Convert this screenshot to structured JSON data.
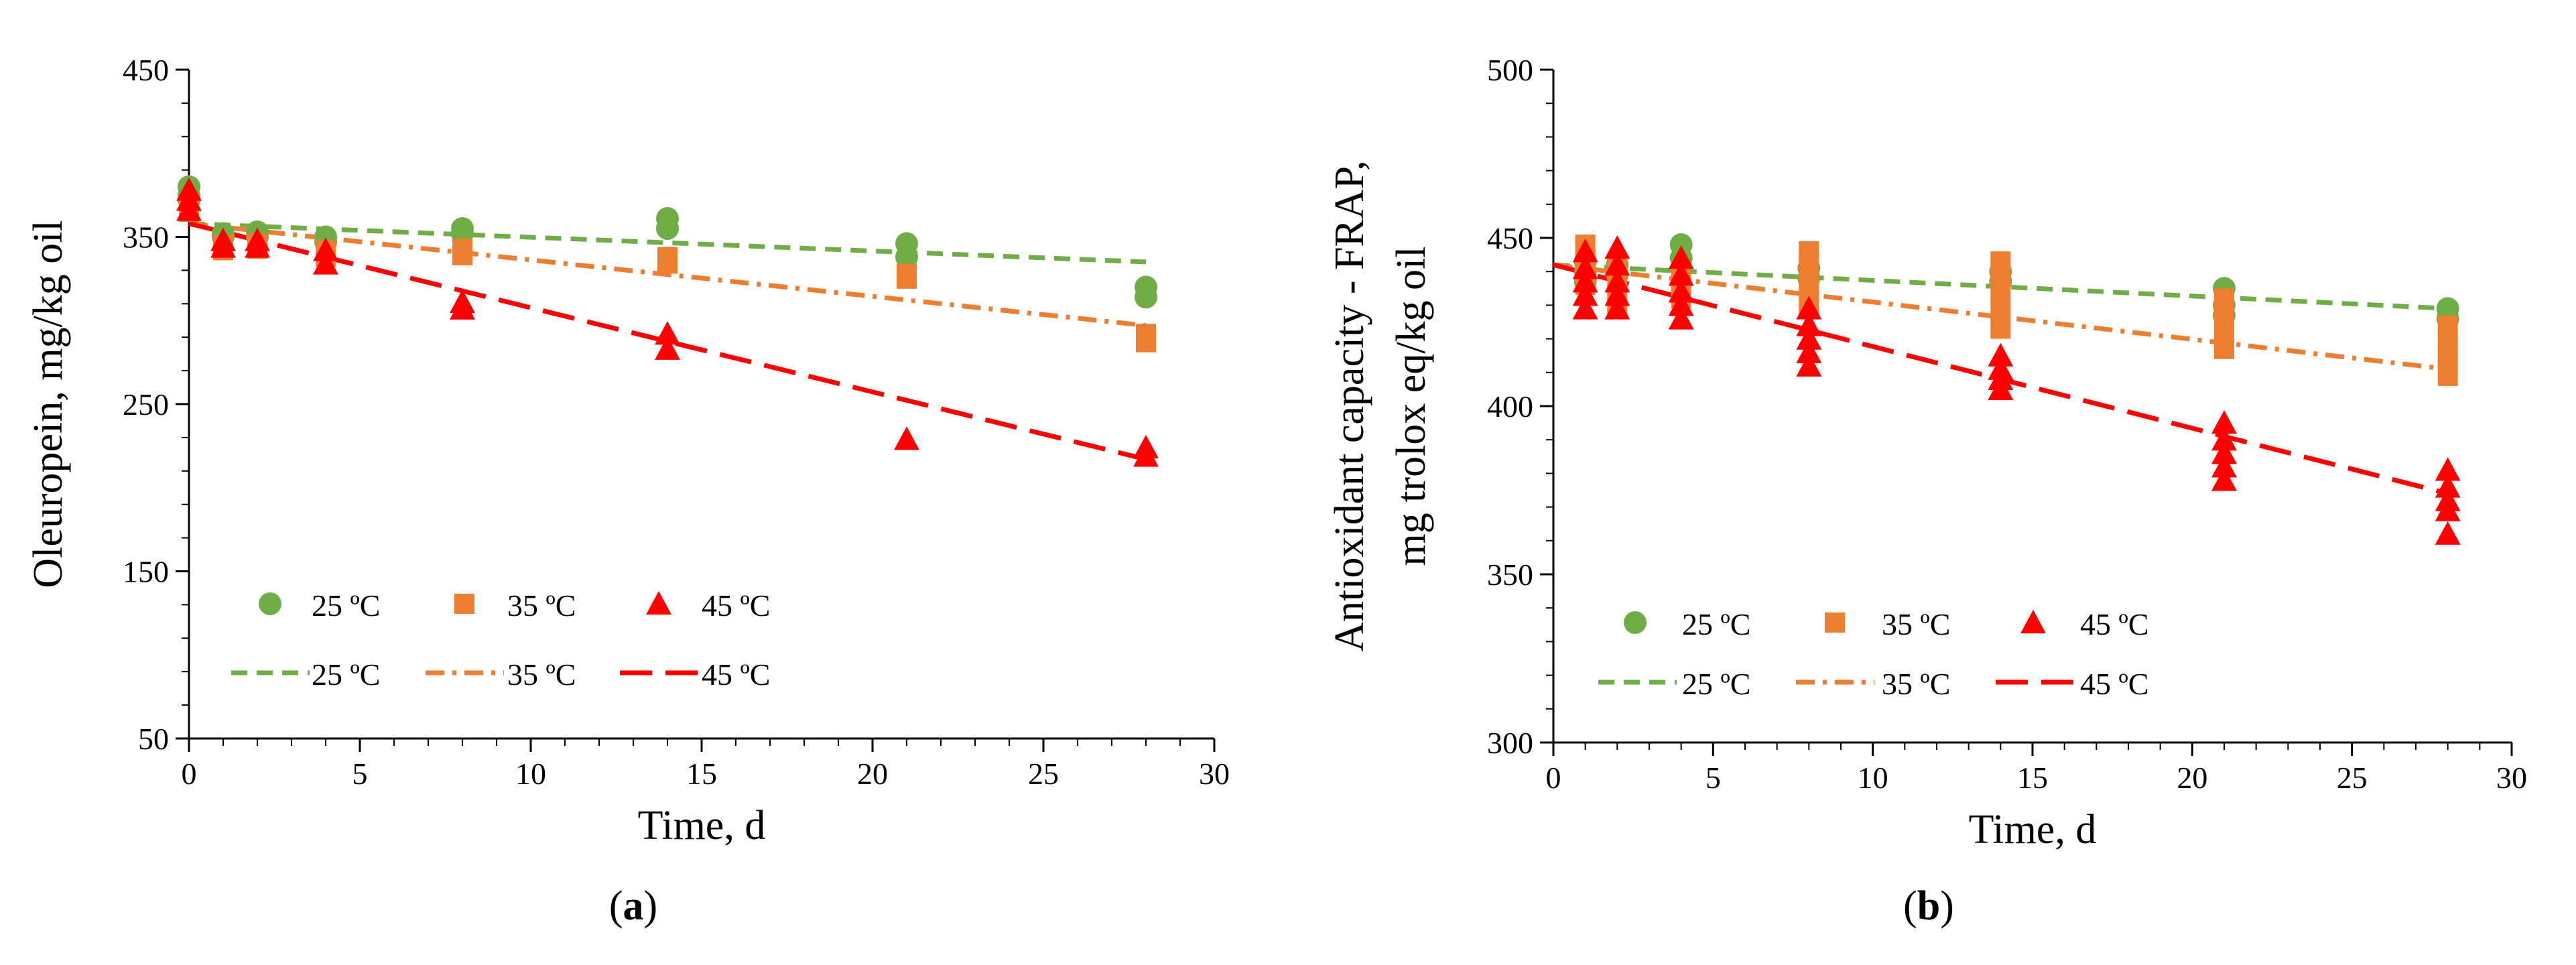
{
  "chart_data": [
    {
      "id": "a",
      "type": "scatter",
      "caption_letter": "a",
      "xlabel": "Time, d",
      "ylabel_lines": [
        "Oleuropein, mg/kg oil"
      ],
      "xlim": [
        0,
        30
      ],
      "ylim": [
        50,
        450
      ],
      "xticks": [
        0,
        5,
        10,
        15,
        20,
        25,
        30
      ],
      "yticks": [
        50,
        150,
        250,
        350,
        450
      ],
      "series": [
        {
          "name": "25 ºC",
          "marker": "circle",
          "color": "#70AD47",
          "points": [
            [
              0,
              380
            ],
            [
              0,
              375
            ],
            [
              0,
              372
            ],
            [
              1,
              352
            ],
            [
              1,
              350
            ],
            [
              2,
              353
            ],
            [
              2,
              350
            ],
            [
              4,
              350
            ],
            [
              4,
              347
            ],
            [
              8,
              355
            ],
            [
              8,
              352
            ],
            [
              14,
              361
            ],
            [
              14,
              355
            ],
            [
              21,
              346
            ],
            [
              21,
              338
            ],
            [
              28,
              320
            ],
            [
              28,
              314
            ]
          ]
        },
        {
          "name": "35 ºC",
          "marker": "square",
          "color": "#ED7D31",
          "points": [
            [
              0,
              370
            ],
            [
              0,
              365
            ],
            [
              1,
              345
            ],
            [
              1,
              342
            ],
            [
              2,
              346
            ],
            [
              2,
              343
            ],
            [
              4,
              342
            ],
            [
              4,
              338
            ],
            [
              8,
              343
            ],
            [
              8,
              339
            ],
            [
              14,
              338
            ],
            [
              14,
              334
            ],
            [
              21,
              328
            ],
            [
              21,
              325
            ],
            [
              28,
              292
            ],
            [
              28,
              287
            ]
          ]
        },
        {
          "name": "45 ºC",
          "marker": "triangle",
          "color": "#FF0000",
          "points": [
            [
              0,
              378
            ],
            [
              0,
              372
            ],
            [
              0,
              366
            ],
            [
              1,
              348
            ],
            [
              1,
              344
            ],
            [
              2,
              348
            ],
            [
              2,
              344
            ],
            [
              4,
              342
            ],
            [
              4,
              334
            ],
            [
              8,
              311
            ],
            [
              8,
              307
            ],
            [
              14,
              292
            ],
            [
              14,
              283
            ],
            [
              21,
              229
            ],
            [
              28,
              224
            ],
            [
              28,
              219
            ]
          ]
        }
      ],
      "trendlines": [
        {
          "name": "25 ºC",
          "style": "dash",
          "color": "#70AD47",
          "from": [
            0,
            358
          ],
          "to": [
            28,
            335
          ]
        },
        {
          "name": "35 ºC",
          "style": "dashdot",
          "color": "#ED7D31",
          "from": [
            0,
            358
          ],
          "to": [
            28,
            297
          ]
        },
        {
          "name": "45 ºC",
          "style": "longdash",
          "color": "#FF0000",
          "from": [
            0,
            358
          ],
          "to": [
            28,
            217
          ]
        }
      ],
      "legend_rows": [
        [
          "25 ºC",
          "35 ºC",
          "45 ºC"
        ],
        [
          "25 ºC",
          "35 ºC",
          "45 ºC"
        ]
      ]
    },
    {
      "id": "b",
      "type": "scatter",
      "caption_letter": "b",
      "xlabel": "Time, d",
      "ylabel_lines": [
        "Antioxidant capacity - FRAP,",
        "mg trolox eq/kg oil"
      ],
      "xlim": [
        0,
        30
      ],
      "ylim": [
        300,
        500
      ],
      "xticks": [
        0,
        5,
        10,
        15,
        20,
        25,
        30
      ],
      "yticks": [
        300,
        350,
        400,
        450,
        500
      ],
      "series": [
        {
          "name": "25 ºC",
          "marker": "circle",
          "color": "#70AD47",
          "points": [
            [
              1,
              443
            ],
            [
              1,
              440
            ],
            [
              1,
              437
            ],
            [
              2,
              442
            ],
            [
              2,
              439
            ],
            [
              4,
              448
            ],
            [
              4,
              444
            ],
            [
              8,
              441
            ],
            [
              8,
              438
            ],
            [
              14,
              440
            ],
            [
              14,
              437
            ],
            [
              21,
              435
            ],
            [
              21,
              430
            ],
            [
              21,
              427
            ],
            [
              28,
              429
            ],
            [
              28,
              426
            ]
          ]
        },
        {
          "name": "35 ºC",
          "marker": "square",
          "color": "#ED7D31",
          "points": [
            [
              1,
              448
            ],
            [
              1,
              444
            ],
            [
              1,
              440
            ],
            [
              1,
              436
            ],
            [
              2,
              441
            ],
            [
              2,
              437
            ],
            [
              2,
              433
            ],
            [
              2,
              429
            ],
            [
              4,
              440
            ],
            [
              4,
              436
            ],
            [
              4,
              432
            ],
            [
              8,
              446
            ],
            [
              8,
              442
            ],
            [
              8,
              438
            ],
            [
              8,
              434
            ],
            [
              8,
              430
            ],
            [
              14,
              443
            ],
            [
              14,
              438
            ],
            [
              14,
              433
            ],
            [
              14,
              428
            ],
            [
              14,
              423
            ],
            [
              21,
              432
            ],
            [
              21,
              427
            ],
            [
              21,
              422
            ],
            [
              21,
              417
            ],
            [
              28,
              424
            ],
            [
              28,
              419
            ],
            [
              28,
              414
            ],
            [
              28,
              409
            ]
          ]
        },
        {
          "name": "45 ºC",
          "marker": "triangle",
          "color": "#FF0000",
          "points": [
            [
              1,
              446
            ],
            [
              1,
              441
            ],
            [
              1,
              437
            ],
            [
              1,
              433
            ],
            [
              1,
              429
            ],
            [
              2,
              447
            ],
            [
              2,
              442
            ],
            [
              2,
              437
            ],
            [
              2,
              433
            ],
            [
              2,
              429
            ],
            [
              4,
              444
            ],
            [
              4,
              439
            ],
            [
              4,
              434
            ],
            [
              4,
              430
            ],
            [
              4,
              426
            ],
            [
              8,
              429
            ],
            [
              8,
              424
            ],
            [
              8,
              420
            ],
            [
              8,
              416
            ],
            [
              8,
              412
            ],
            [
              14,
              415
            ],
            [
              14,
              411
            ],
            [
              14,
              408
            ],
            [
              14,
              405
            ],
            [
              21,
              395
            ],
            [
              21,
              390
            ],
            [
              21,
              386
            ],
            [
              21,
              382
            ],
            [
              21,
              378
            ],
            [
              28,
              381
            ],
            [
              28,
              376
            ],
            [
              28,
              372
            ],
            [
              28,
              369
            ],
            [
              28,
              362
            ]
          ]
        }
      ],
      "trendlines": [
        {
          "name": "25 ºC",
          "style": "dash",
          "color": "#70AD47",
          "from": [
            0,
            442
          ],
          "to": [
            28,
            429
          ]
        },
        {
          "name": "35 ºC",
          "style": "dashdot",
          "color": "#ED7D31",
          "from": [
            0,
            442
          ],
          "to": [
            28,
            411
          ]
        },
        {
          "name": "45 ºC",
          "style": "longdash",
          "color": "#FF0000",
          "from": [
            0,
            442
          ],
          "to": [
            28,
            374
          ]
        }
      ],
      "legend_rows": [
        [
          "25 ºC",
          "35 ºC",
          "45 ºC"
        ],
        [
          "25 ºC",
          "35 ºC",
          "45 ºC"
        ]
      ]
    }
  ]
}
